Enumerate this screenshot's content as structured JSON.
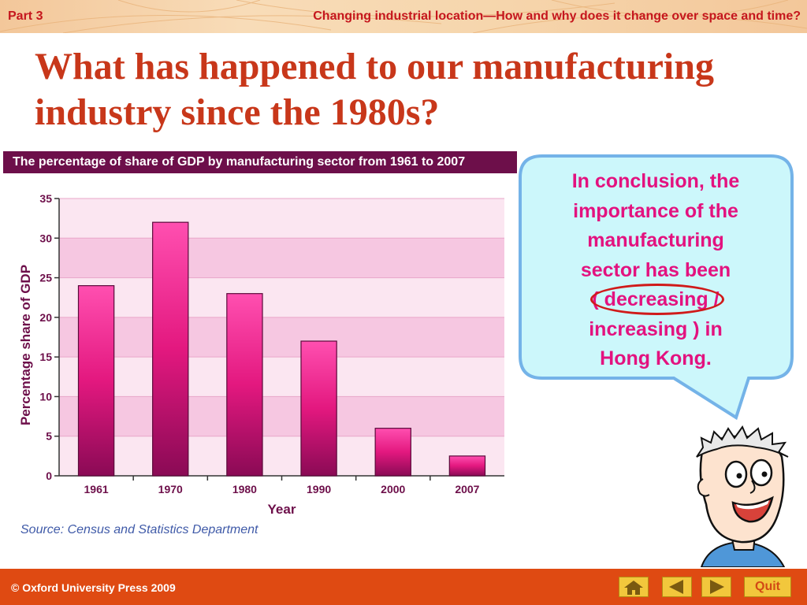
{
  "header": {
    "part": "Part 3",
    "topic": "Changing industrial location—How and why does it change over space and time?"
  },
  "page_title": "What has happened to our manufacturing industry since the 1980s?",
  "chart_data": {
    "type": "bar",
    "title": "The percentage of share of GDP by manufacturing sector from 1961 to 2007",
    "categories": [
      "1961",
      "1970",
      "1980",
      "1990",
      "2000",
      "2007"
    ],
    "values": [
      24,
      32,
      23,
      17,
      6,
      2.5
    ],
    "xlabel": "Year",
    "ylabel": "Percentage share of GDP",
    "ylim": [
      0,
      35
    ],
    "yticks": [
      0,
      5,
      10,
      15,
      20,
      25,
      30,
      35
    ],
    "bar_color": "#e3187f",
    "band_color": "#f6c7e1"
  },
  "source": "Source: Census and Statistics Department",
  "bubble": {
    "line1": "In conclusion, the",
    "line2": "importance of the",
    "line3": "manufacturing",
    "line4": "sector has been",
    "open_paren": "(",
    "choice_circled": "decreasing",
    "slash": "/",
    "choice_other": "increasing",
    "close": ") in",
    "line7": "Hong Kong."
  },
  "footer": {
    "copyright": "© Oxford University Press 2009",
    "quit_label": "Quit",
    "home_icon": "home-icon",
    "prev_icon": "left-arrow-icon",
    "next_icon": "right-arrow-icon"
  },
  "colors": {
    "header_text": "#c5161d",
    "title": "#c8371a",
    "bubble_text": "#e3127f",
    "footer": "#df4a12"
  }
}
